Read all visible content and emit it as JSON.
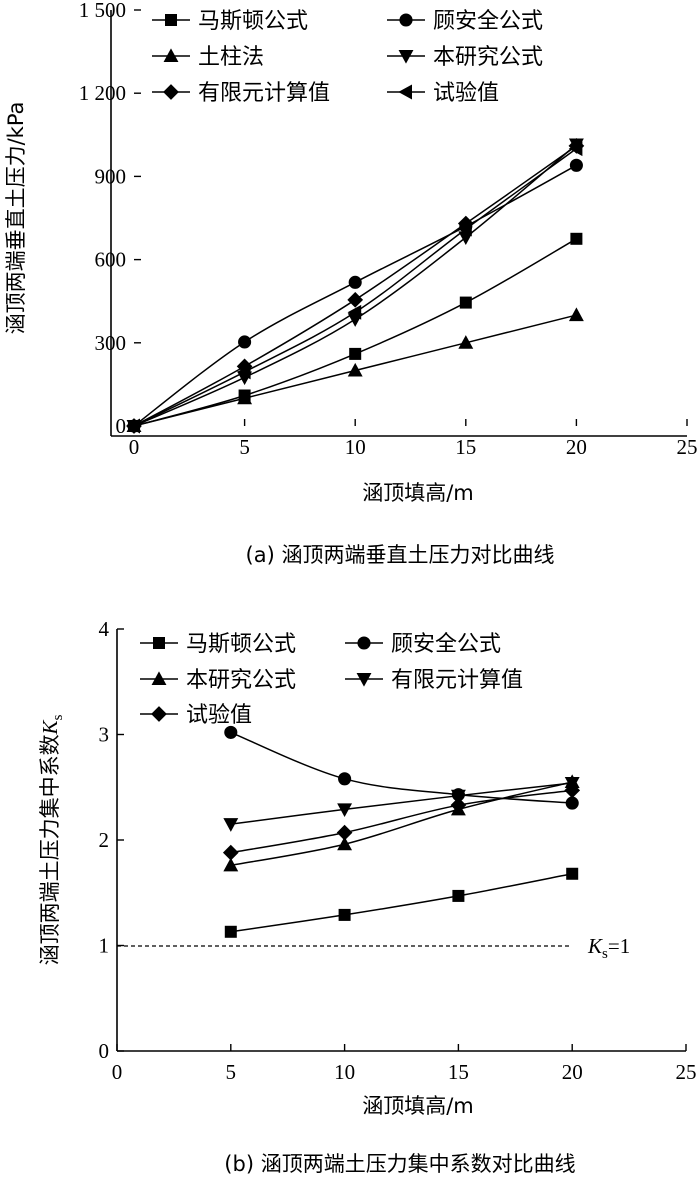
{
  "chart_data": [
    {
      "type": "line",
      "title": "(a) 涵顶两端垂直土压力对比曲线",
      "xlabel": "涵顶填高/m",
      "ylabel": "涵顶两端垂直土压力/kPa",
      "xlim": [
        0,
        25
      ],
      "ylim": [
        0,
        1500
      ],
      "xticks": [
        0,
        5,
        10,
        15,
        20,
        25
      ],
      "yticks": [
        0,
        300,
        600,
        900,
        1200,
        1500
      ],
      "ytick_labels": [
        "0",
        "300",
        "600",
        "900",
        "1 200",
        "1 500"
      ],
      "series": [
        {
          "name": "马斯顿公式",
          "marker": "square",
          "x": [
            0,
            5,
            10,
            15,
            20
          ],
          "y": [
            0,
            110,
            260,
            445,
            675
          ]
        },
        {
          "name": "顾安全公式",
          "marker": "circle",
          "x": [
            0,
            5,
            10,
            15,
            20
          ],
          "y": [
            0,
            303,
            518,
            720,
            940
          ]
        },
        {
          "name": "土柱法",
          "marker": "triangle-up",
          "x": [
            0,
            5,
            10,
            15,
            20
          ],
          "y": [
            0,
            100,
            200,
            300,
            400
          ]
        },
        {
          "name": "本研究公式",
          "marker": "triangle-down",
          "x": [
            0,
            5,
            10,
            15,
            20
          ],
          "y": [
            0,
            175,
            385,
            680,
            1015
          ]
        },
        {
          "name": "有限元计算值",
          "marker": "diamond",
          "x": [
            0,
            5,
            10,
            15,
            20
          ],
          "y": [
            0,
            215,
            455,
            730,
            1010
          ]
        },
        {
          "name": "试验值",
          "marker": "triangle-left",
          "x": [
            0,
            5,
            10,
            15,
            20
          ],
          "y": [
            0,
            195,
            410,
            710,
            1000
          ]
        }
      ]
    },
    {
      "type": "line",
      "title": "(b) 涵顶两端土压力集中系数对比曲线",
      "xlabel": "涵顶填高/m",
      "ylabel_main": "涵顶两端土压力集中系数",
      "ylabel_symbol": "K",
      "ylabel_sub": "s",
      "xlim": [
        0,
        25
      ],
      "ylim": [
        0,
        4
      ],
      "xticks": [
        0,
        5,
        10,
        15,
        20,
        25
      ],
      "yticks": [
        0,
        1,
        2,
        3,
        4
      ],
      "series": [
        {
          "name": "马斯顿公式",
          "marker": "square",
          "x": [
            5,
            10,
            15,
            20
          ],
          "y": [
            1.13,
            1.29,
            1.47,
            1.68
          ]
        },
        {
          "name": "顾安全公式",
          "marker": "circle",
          "x": [
            5,
            10,
            15,
            20
          ],
          "y": [
            3.02,
            2.58,
            2.43,
            2.35
          ]
        },
        {
          "name": "本研究公式",
          "marker": "triangle-up",
          "x": [
            5,
            10,
            15,
            20
          ],
          "y": [
            1.76,
            1.96,
            2.29,
            2.55
          ]
        },
        {
          "name": "有限元计算值",
          "marker": "triangle-down",
          "x": [
            5,
            10,
            15,
            20
          ],
          "y": [
            2.15,
            2.29,
            2.42,
            2.54
          ]
        },
        {
          "name": "试验值",
          "marker": "diamond",
          "x": [
            5,
            10,
            15,
            20
          ],
          "y": [
            1.88,
            2.07,
            2.33,
            2.47
          ]
        }
      ],
      "reference_line": {
        "y": 1,
        "style": "dashed",
        "label_symbol": "K",
        "label_sub": "s",
        "label_rest": "=1"
      }
    }
  ]
}
